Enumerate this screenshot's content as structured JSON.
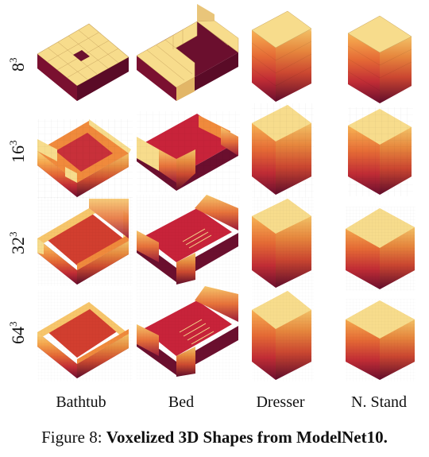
{
  "figure": {
    "row_labels": [
      {
        "base": "8",
        "exp": "3"
      },
      {
        "base": "16",
        "exp": "3"
      },
      {
        "base": "32",
        "exp": "3"
      },
      {
        "base": "64",
        "exp": "3"
      }
    ],
    "column_labels": [
      "Bathtub",
      "Bed",
      "Dresser",
      "N. Stand"
    ],
    "caption": {
      "prefix": "Figure 8:",
      "title": "Voxelized 3D Shapes from ModelNet10."
    },
    "colors": {
      "top": "#f7dc8c",
      "light": "#f9c96a",
      "orange": "#f08a3c",
      "red": "#d13b2e",
      "crimson": "#a3203a",
      "maroon": "#6b0f2e"
    }
  }
}
